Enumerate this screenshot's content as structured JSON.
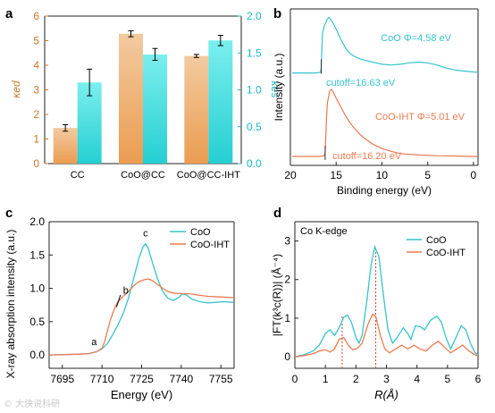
{
  "figure": {
    "watermark": "© 大侠说科研"
  },
  "colors": {
    "axis": "#222222",
    "bar_orange_top": "#f2caa0",
    "bar_orange_bottom": "#eb9d51",
    "bar_cyan_top": "#7beeee",
    "bar_cyan_bottom": "#25cfd2",
    "left_axis_orange": "#c9772b",
    "right_axis_cyan": "#1ab8c0",
    "line_cyan": "#36c3cc",
    "line_orange": "#ec7a52",
    "dotted_ref": "#cc4422"
  },
  "chart_data": [
    {
      "panel": "a",
      "type": "bar",
      "categories": [
        "CC",
        "CoO@CC",
        "CoO@CC-IHT"
      ],
      "ylabel_left": "κed",
      "ylabel_right": "κes",
      "ylim_left": [
        0,
        6
      ],
      "ylim_right": [
        0,
        2.0
      ],
      "yticks_left": [
        "0",
        "1",
        "2",
        "3",
        "4",
        "5",
        "6"
      ],
      "yticks_right": [
        "0.0",
        "0.5",
        "1.0",
        "1.5",
        "2.0"
      ],
      "series": [
        {
          "axis": "left",
          "values": [
            1.45,
            5.28,
            4.38
          ],
          "errors": [
            0.13,
            0.12,
            0.06
          ]
        },
        {
          "axis": "right",
          "values": [
            1.1,
            1.48,
            1.67
          ],
          "errors": [
            0.18,
            0.08,
            0.07
          ]
        }
      ]
    },
    {
      "panel": "b",
      "type": "line",
      "xlabel": "Binding energy (eV)",
      "ylabel": "Intensity (a.u.)",
      "xlim": [
        20,
        -0.5
      ],
      "xticks": [
        "20",
        "15",
        "10",
        "5",
        "0"
      ],
      "series": [
        {
          "label": "CoO Φ=4.58 eV",
          "cutoff_label": "cutoff=16.63 eV",
          "points": [
            [
              19.8,
              0.605
            ],
            [
              17.2,
              0.605
            ],
            [
              16.7,
              0.61
            ],
            [
              16.63,
              0.64
            ],
            [
              16.5,
              0.88
            ],
            [
              16.3,
              0.93
            ],
            [
              16.0,
              0.975
            ],
            [
              15.8,
              0.99
            ],
            [
              15.5,
              0.97
            ],
            [
              15.0,
              0.91
            ],
            [
              14.5,
              0.84
            ],
            [
              14.0,
              0.78
            ],
            [
              13.5,
              0.74
            ],
            [
              13.0,
              0.72
            ],
            [
              12.5,
              0.705
            ],
            [
              12.0,
              0.695
            ],
            [
              11.0,
              0.68
            ],
            [
              10.0,
              0.665
            ],
            [
              9.0,
              0.66
            ],
            [
              8.0,
              0.665
            ],
            [
              7.0,
              0.675
            ],
            [
              6.0,
              0.68
            ],
            [
              5.0,
              0.675
            ],
            [
              4.0,
              0.66
            ],
            [
              3.0,
              0.64
            ],
            [
              2.0,
              0.625
            ],
            [
              1.0,
              0.618
            ],
            [
              0.0,
              0.612
            ],
            [
              -0.5,
              0.61
            ]
          ]
        },
        {
          "label": "CoO-IHT Φ=5.01 eV",
          "cutoff_label": "cutoff=16.20 eV",
          "points": [
            [
              19.8,
              0.025
            ],
            [
              16.8,
              0.025
            ],
            [
              16.3,
              0.03
            ],
            [
              16.2,
              0.05
            ],
            [
              16.05,
              0.3
            ],
            [
              15.95,
              0.4
            ],
            [
              15.7,
              0.48
            ],
            [
              15.5,
              0.49
            ],
            [
              15.3,
              0.47
            ],
            [
              15.0,
              0.43
            ],
            [
              14.5,
              0.37
            ],
            [
              14.0,
              0.31
            ],
            [
              13.5,
              0.26
            ],
            [
              13.0,
              0.22
            ],
            [
              12.5,
              0.185
            ],
            [
              12.0,
              0.155
            ],
            [
              11.0,
              0.11
            ],
            [
              10.0,
              0.08
            ],
            [
              9.0,
              0.06
            ],
            [
              8.0,
              0.045
            ],
            [
              6.0,
              0.035
            ],
            [
              4.0,
              0.03
            ],
            [
              2.0,
              0.028
            ],
            [
              0.0,
              0.025
            ],
            [
              -0.5,
              0.025
            ]
          ]
        }
      ]
    },
    {
      "panel": "c",
      "type": "line",
      "xlabel": "Energy (eV)",
      "ylabel": "X-ray absorption intensity (a.u.)",
      "xlim": [
        7690,
        7760
      ],
      "ylim": [
        -0.2,
        2.0
      ],
      "xticks": [
        "7695",
        "7710",
        "7725",
        "7740",
        "7755"
      ],
      "yticks": [
        "0.0",
        "0.5",
        "1.0",
        "1.5",
        "2.0"
      ],
      "annotations": [
        "a",
        "b",
        "c"
      ],
      "series": [
        {
          "name": "CoO",
          "points": [
            [
              7690,
              0.0
            ],
            [
              7700,
              0.01
            ],
            [
              7705,
              0.02
            ],
            [
              7708,
              0.05
            ],
            [
              7710,
              0.09
            ],
            [
              7712,
              0.17
            ],
            [
              7714,
              0.3
            ],
            [
              7716,
              0.45
            ],
            [
              7718,
              0.62
            ],
            [
              7720,
              0.85
            ],
            [
              7722,
              1.15
            ],
            [
              7724,
              1.45
            ],
            [
              7725.5,
              1.62
            ],
            [
              7726.5,
              1.67
            ],
            [
              7727.5,
              1.6
            ],
            [
              7729,
              1.4
            ],
            [
              7731,
              1.15
            ],
            [
              7733,
              0.95
            ],
            [
              7735,
              0.85
            ],
            [
              7737,
              0.82
            ],
            [
              7739,
              0.86
            ],
            [
              7740.5,
              0.92
            ],
            [
              7742,
              0.9
            ],
            [
              7744,
              0.84
            ],
            [
              7747,
              0.8
            ],
            [
              7750,
              0.78
            ],
            [
              7753,
              0.79
            ],
            [
              7756,
              0.8
            ],
            [
              7760,
              0.79
            ]
          ]
        },
        {
          "name": "CoO-IHT",
          "points": [
            [
              7690,
              0.0
            ],
            [
              7700,
              0.01
            ],
            [
              7705,
              0.02
            ],
            [
              7708,
              0.05
            ],
            [
              7710,
              0.1
            ],
            [
              7711,
              0.2
            ],
            [
              7712,
              0.35
            ],
            [
              7713,
              0.5
            ],
            [
              7714,
              0.62
            ],
            [
              7715,
              0.72
            ],
            [
              7716,
              0.8
            ],
            [
              7718,
              0.88
            ],
            [
              7720,
              0.95
            ],
            [
              7722,
              1.04
            ],
            [
              7724,
              1.1
            ],
            [
              7726,
              1.13
            ],
            [
              7727.5,
              1.14
            ],
            [
              7729,
              1.12
            ],
            [
              7731,
              1.06
            ],
            [
              7733,
              1.0
            ],
            [
              7735,
              0.95
            ],
            [
              7737,
              0.93
            ],
            [
              7740,
              0.92
            ],
            [
              7743,
              0.92
            ],
            [
              7746,
              0.9
            ],
            [
              7750,
              0.88
            ],
            [
              7755,
              0.87
            ],
            [
              7760,
              0.86
            ]
          ]
        }
      ]
    },
    {
      "panel": "d",
      "type": "line",
      "xlabel": "R(Å)",
      "ylabel": "|FT(k³c(R))| (Å⁻⁴)",
      "xlim": [
        0,
        6
      ],
      "ylim": [
        -0.3,
        3.5
      ],
      "xticks": [
        "0",
        "1",
        "2",
        "3",
        "4",
        "5",
        "6"
      ],
      "yticks": [
        "0",
        "1",
        "2",
        "3"
      ],
      "inset_label": "Co K-edge",
      "series": [
        {
          "name": "CoO",
          "points": [
            [
              0,
              0
            ],
            [
              0.3,
              0.05
            ],
            [
              0.6,
              0.15
            ],
            [
              0.8,
              0.3
            ],
            [
              1.0,
              0.6
            ],
            [
              1.15,
              0.7
            ],
            [
              1.3,
              0.55
            ],
            [
              1.45,
              0.75
            ],
            [
              1.6,
              1.02
            ],
            [
              1.72,
              1.08
            ],
            [
              1.85,
              0.9
            ],
            [
              2.0,
              0.5
            ],
            [
              2.1,
              0.35
            ],
            [
              2.2,
              0.55
            ],
            [
              2.35,
              1.4
            ],
            [
              2.5,
              2.4
            ],
            [
              2.62,
              2.85
            ],
            [
              2.75,
              2.6
            ],
            [
              2.9,
              1.6
            ],
            [
              3.05,
              0.7
            ],
            [
              3.2,
              0.35
            ],
            [
              3.35,
              0.5
            ],
            [
              3.55,
              0.75
            ],
            [
              3.7,
              0.6
            ],
            [
              3.8,
              0.45
            ],
            [
              3.95,
              0.8
            ],
            [
              4.1,
              0.78
            ],
            [
              4.25,
              0.7
            ],
            [
              4.45,
              0.95
            ],
            [
              4.65,
              1.05
            ],
            [
              4.8,
              0.9
            ],
            [
              4.95,
              0.5
            ],
            [
              5.1,
              0.2
            ],
            [
              5.25,
              0.45
            ],
            [
              5.45,
              0.8
            ],
            [
              5.6,
              0.7
            ],
            [
              5.75,
              0.35
            ],
            [
              5.9,
              0.1
            ],
            [
              6.0,
              0.05
            ]
          ]
        },
        {
          "name": "CoO-IHT",
          "points": [
            [
              0,
              0
            ],
            [
              0.3,
              0.03
            ],
            [
              0.6,
              0.08
            ],
            [
              0.8,
              0.15
            ],
            [
              1.0,
              0.18
            ],
            [
              1.15,
              0.12
            ],
            [
              1.3,
              0.2
            ],
            [
              1.45,
              0.45
            ],
            [
              1.6,
              0.5
            ],
            [
              1.75,
              0.3
            ],
            [
              1.9,
              0.18
            ],
            [
              2.05,
              0.22
            ],
            [
              2.2,
              0.35
            ],
            [
              2.4,
              0.85
            ],
            [
              2.55,
              1.1
            ],
            [
              2.65,
              1.05
            ],
            [
              2.8,
              0.55
            ],
            [
              2.95,
              0.2
            ],
            [
              3.1,
              0.1
            ],
            [
              3.3,
              0.2
            ],
            [
              3.5,
              0.3
            ],
            [
              3.7,
              0.2
            ],
            [
              3.9,
              0.3
            ],
            [
              4.1,
              0.2
            ],
            [
              4.3,
              0.15
            ],
            [
              4.5,
              0.3
            ],
            [
              4.7,
              0.4
            ],
            [
              4.9,
              0.25
            ],
            [
              5.1,
              0.1
            ],
            [
              5.3,
              0.2
            ],
            [
              5.5,
              0.3
            ],
            [
              5.7,
              0.15
            ],
            [
              5.9,
              0.05
            ],
            [
              6.0,
              0.02
            ]
          ]
        }
      ],
      "ref_lines_x": [
        1.55,
        2.65
      ]
    }
  ],
  "panels": {
    "a": {
      "letter": "a"
    },
    "b": {
      "letter": "b"
    },
    "c": {
      "letter": "c"
    },
    "d": {
      "letter": "d"
    }
  }
}
